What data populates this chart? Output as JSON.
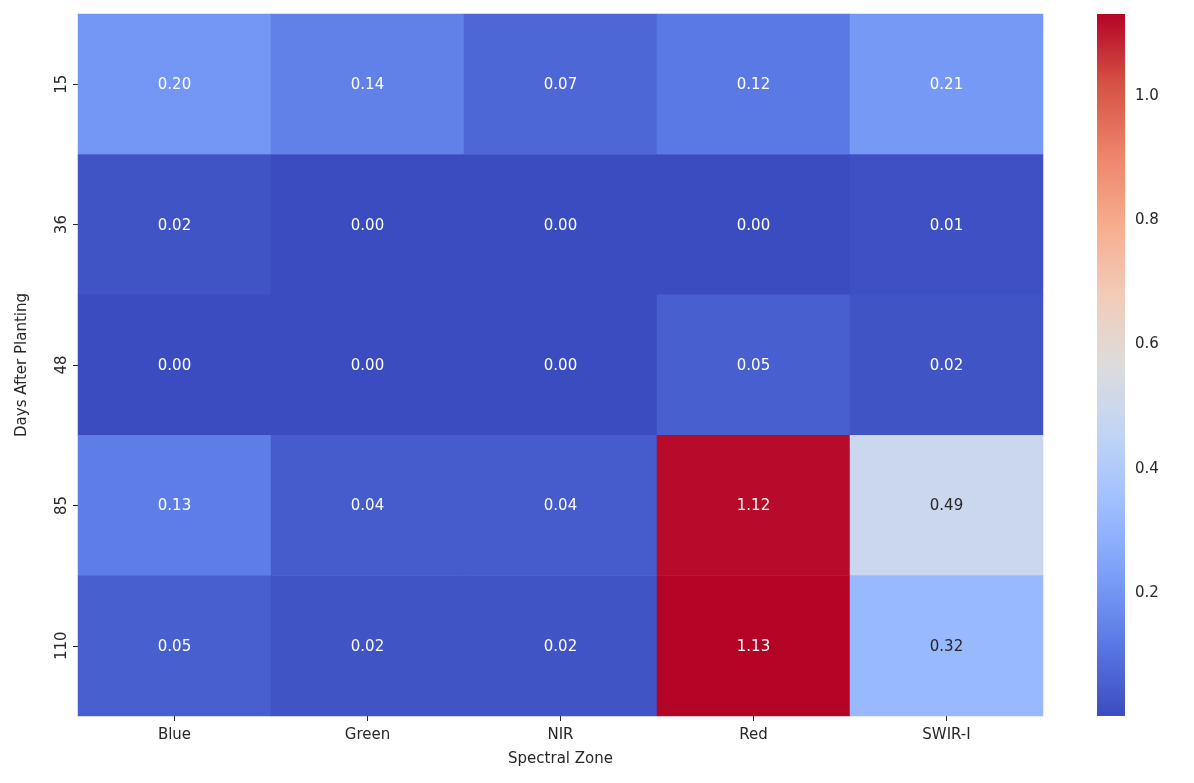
{
  "chart_data": {
    "type": "heatmap",
    "xlabel": "Spectral Zone",
    "ylabel": "Days After Planting",
    "categories": [
      "Blue",
      "Green",
      "NIR",
      "Red",
      "SWIR-I"
    ],
    "y_categories": [
      "15",
      "36",
      "48",
      "85",
      "110"
    ],
    "cells": [
      [
        0.2,
        0.14,
        0.07,
        0.12,
        0.21
      ],
      [
        0.02,
        0.0,
        0.0,
        0.0,
        0.01
      ],
      [
        0.0,
        0.0,
        0.0,
        0.05,
        0.02
      ],
      [
        0.13,
        0.04,
        0.04,
        1.12,
        0.49
      ],
      [
        0.05,
        0.02,
        0.02,
        1.13,
        0.32
      ]
    ],
    "cell_labels": [
      [
        "0.20",
        "0.14",
        "0.07",
        "0.12",
        "0.21"
      ],
      [
        "0.02",
        "0.00",
        "0.00",
        "0.00",
        "0.01"
      ],
      [
        "0.00",
        "0.00",
        "0.00",
        "0.05",
        "0.02"
      ],
      [
        "0.13",
        "0.04",
        "0.04",
        "1.12",
        "0.49"
      ],
      [
        "0.05",
        "0.02",
        "0.02",
        "1.13",
        "0.32"
      ]
    ],
    "clim": [
      0,
      1.13
    ],
    "cticks": [
      0.2,
      0.4,
      0.6,
      0.8,
      {
        "value": 1.0,
        "label": "1.0"
      }
    ]
  }
}
